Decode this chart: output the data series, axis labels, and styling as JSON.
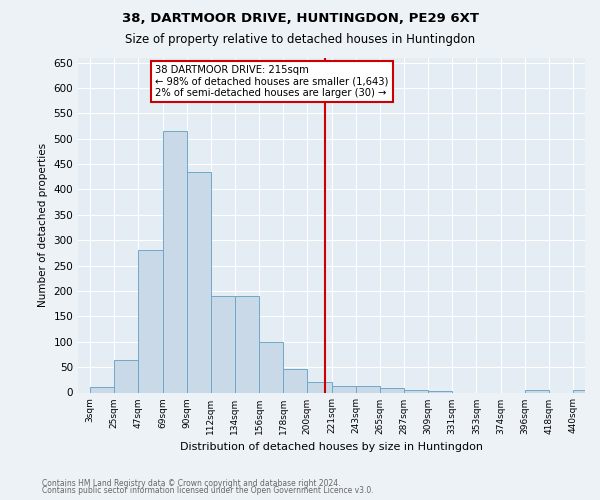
{
  "title": "38, DARTMOOR DRIVE, HUNTINGDON, PE29 6XT",
  "subtitle": "Size of property relative to detached houses in Huntingdon",
  "xlabel": "Distribution of detached houses by size in Huntingdon",
  "ylabel": "Number of detached properties",
  "footnote1": "Contains HM Land Registry data © Crown copyright and database right 2024.",
  "footnote2": "Contains public sector information licensed under the Open Government Licence v3.0.",
  "categories": [
    "3sqm",
    "25sqm",
    "47sqm",
    "69sqm",
    "90sqm",
    "112sqm",
    "134sqm",
    "156sqm",
    "178sqm",
    "200sqm",
    "221sqm",
    "243sqm",
    "265sqm",
    "287sqm",
    "309sqm",
    "331sqm",
    "353sqm",
    "374sqm",
    "396sqm",
    "418sqm",
    "440sqm"
  ],
  "bar_values": [
    10,
    65,
    280,
    515,
    435,
    190,
    190,
    100,
    47,
    20,
    12,
    12,
    8,
    4,
    3,
    0,
    0,
    0,
    5,
    0,
    5
  ],
  "bar_color": "#c9d9e8",
  "bar_edge_color": "#6fa8c8",
  "annotation_label": "38 DARTMOOR DRIVE: 215sqm",
  "annotation_line1": "← 98% of detached houses are smaller (1,643)",
  "annotation_line2": "2% of semi-detached houses are larger (30) →",
  "annotation_box_color": "#ffffff",
  "annotation_box_edge": "#cc0000",
  "vline_color": "#cc0000",
  "vline_x_index": 9.71,
  "ylim": [
    0,
    660
  ],
  "yticks": [
    0,
    50,
    100,
    150,
    200,
    250,
    300,
    350,
    400,
    450,
    500,
    550,
    600,
    650
  ],
  "background_color": "#edf2f7",
  "plot_background": "#e4ecf4"
}
